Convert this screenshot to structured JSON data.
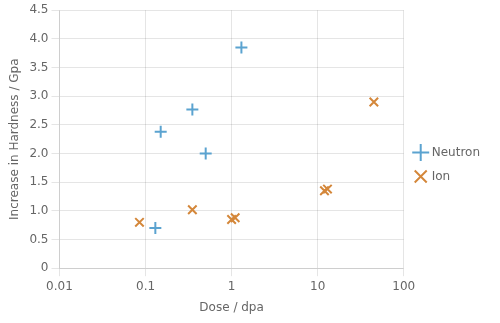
{
  "chart_data": {
    "type": "scatter",
    "xlabel": "Dose / dpa",
    "ylabel": "Increase in Hardness / Gpa",
    "log": "x",
    "grid": true,
    "legend": "right",
    "xlim": [
      0.01,
      100
    ],
    "xticks": [
      0.01,
      0.1,
      1,
      10,
      100
    ],
    "ylim": [
      0,
      4.5
    ],
    "yticks": [
      0,
      0.5,
      {
        "value": 1,
        "label": "1.0"
      },
      1.5,
      {
        "value": 2,
        "label": "2.0"
      },
      2.5,
      {
        "value": 3,
        "label": "3.0"
      },
      3.5,
      {
        "value": 4,
        "label": "4.0"
      },
      4.5
    ],
    "series": [
      {
        "name": "Neutron",
        "color": "#5ba3d0",
        "marker": "+",
        "x": [
          0.13,
          0.15,
          0.35,
          0.5,
          1.3
        ],
        "values": [
          0.7,
          2.38,
          2.77,
          2.0,
          3.85
        ]
      },
      {
        "name": "Ion",
        "color": "#d4873a",
        "marker": "x",
        "x": [
          0.085,
          0.35,
          1.0,
          1.1,
          12.0,
          13.0,
          45.0
        ],
        "values": [
          0.8,
          1.02,
          0.85,
          0.88,
          1.35,
          1.38,
          2.9
        ]
      }
    ]
  }
}
